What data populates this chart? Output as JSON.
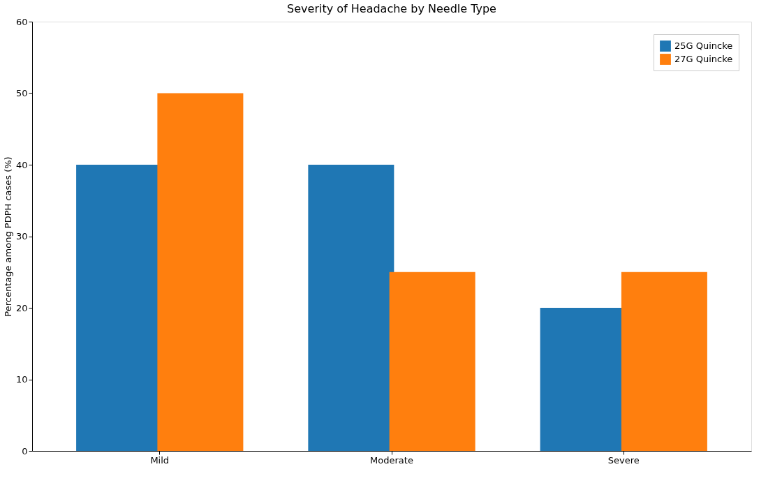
{
  "chart_data": {
    "type": "bar",
    "title": "Severity of Headache by Needle Type",
    "ylabel": "Percentage among PDPH cases (%)",
    "categories": [
      "Mild",
      "Moderate",
      "Severe"
    ],
    "series": [
      {
        "name": "25G Quincke",
        "color": "#1f77b4",
        "values": [
          40,
          40,
          20
        ]
      },
      {
        "name": "27G Quincke",
        "color": "#ff7f0e",
        "values": [
          50,
          25,
          25
        ]
      }
    ],
    "ylim": [
      0,
      60
    ],
    "yticks": [
      0,
      10,
      20,
      30,
      40,
      50,
      60
    ],
    "grid": false,
    "legend": "top right"
  }
}
